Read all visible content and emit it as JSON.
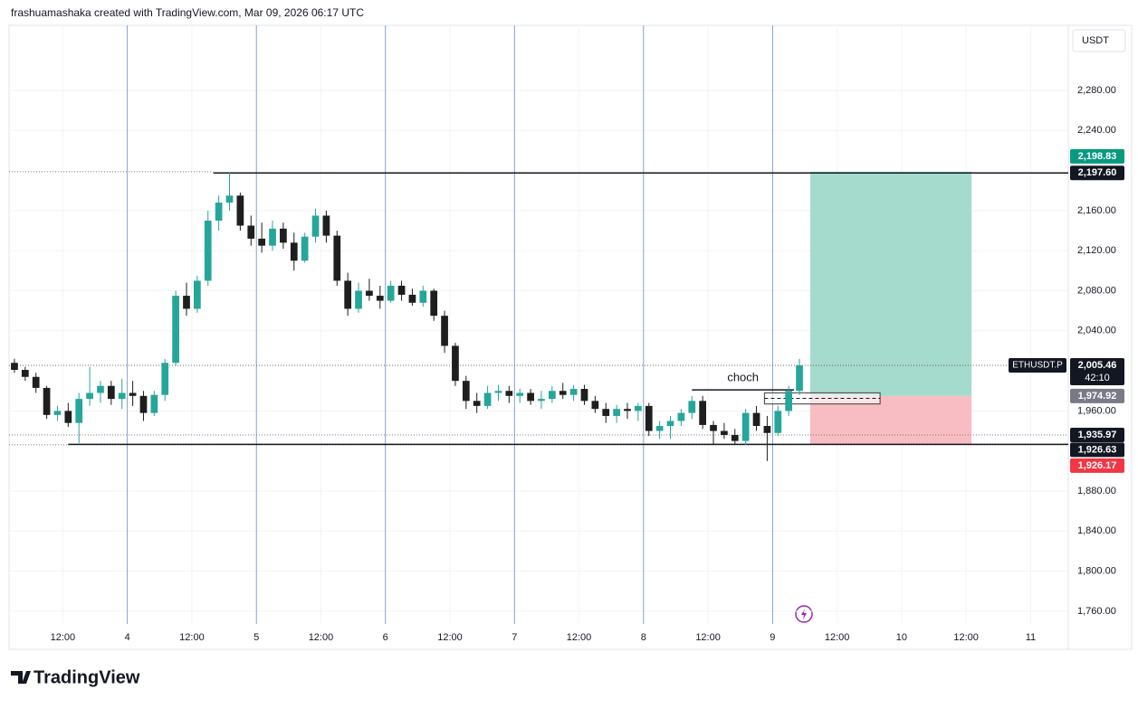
{
  "chart_data": {
    "type": "candlestick",
    "attribution": "frashuamashaka created with TradingView.com, Mar 09, 2026 06:17 UTC",
    "brand": "TradingView",
    "currency": "USDT",
    "symbol": "ETHUSDT.P",
    "countdown": "42:10",
    "up_color": "#26a69a",
    "down_color": "#1e1e1e",
    "xlim": [
      -22,
      175
    ],
    "ylim": [
      1722,
      2345
    ],
    "xticks": [
      {
        "value": -12,
        "label": "12:00"
      },
      {
        "value": 0,
        "label": "4"
      },
      {
        "value": 12,
        "label": "12:00"
      },
      {
        "value": 24,
        "label": "5"
      },
      {
        "value": 36,
        "label": "12:00"
      },
      {
        "value": 48,
        "label": "6"
      },
      {
        "value": 60,
        "label": "12:00"
      },
      {
        "value": 72,
        "label": "7"
      },
      {
        "value": 84,
        "label": "12:00"
      },
      {
        "value": 96,
        "label": "8"
      },
      {
        "value": 108,
        "label": "12:00"
      },
      {
        "value": 120,
        "label": "9"
      },
      {
        "value": 132,
        "label": "12:00"
      },
      {
        "value": 144,
        "label": "10"
      },
      {
        "value": 156,
        "label": "12:00"
      },
      {
        "value": 168,
        "label": "11"
      }
    ],
    "session_lines": [
      0,
      24,
      48,
      72,
      96,
      120
    ],
    "yticks": [
      {
        "value": 2280,
        "label": "2,280.00"
      },
      {
        "value": 2240,
        "label": "2,240.00"
      },
      {
        "value": 2160,
        "label": "2,160.00"
      },
      {
        "value": 2120,
        "label": "2,120.00"
      },
      {
        "value": 2080,
        "label": "2,080.00"
      },
      {
        "value": 2040,
        "label": "2,040.00"
      },
      {
        "value": 1960,
        "label": "1,960.00"
      },
      {
        "value": 1880,
        "label": "1,880.00"
      },
      {
        "value": 1840,
        "label": "1,840.00"
      },
      {
        "value": 1800,
        "label": "1,800.00"
      },
      {
        "value": 1760,
        "label": "1,760.00"
      }
    ],
    "x": [
      -21,
      -19,
      -17,
      -15,
      -13,
      -11,
      -9,
      -7,
      -5,
      -3,
      -1,
      1,
      3,
      5,
      7,
      9,
      11,
      13,
      15,
      17,
      19,
      21,
      23,
      25,
      27,
      29,
      31,
      33,
      35,
      37,
      39,
      41,
      43,
      45,
      47,
      49,
      51,
      53,
      55,
      57,
      59,
      61,
      63,
      65,
      67,
      69,
      71,
      73,
      75,
      77,
      79,
      81,
      83,
      85,
      87,
      89,
      91,
      93,
      95,
      97,
      99,
      101,
      103,
      105,
      107,
      109,
      111,
      113,
      115,
      117,
      119,
      121,
      123,
      125
    ],
    "ohlc": [
      [
        2008,
        2012,
        1998,
        2001
      ],
      [
        2001,
        2004,
        1990,
        1994
      ],
      [
        1994,
        1998,
        1978,
        1983
      ],
      [
        1983,
        1985,
        1952,
        1956
      ],
      [
        1956,
        1965,
        1950,
        1960
      ],
      [
        1960,
        1968,
        1944,
        1948
      ],
      [
        1948,
        1978,
        1928,
        1972
      ],
      [
        1972,
        2004,
        1965,
        1978
      ],
      [
        1978,
        1990,
        1968,
        1985
      ],
      [
        1985,
        1990,
        1966,
        1972
      ],
      [
        1972,
        1992,
        1962,
        1978
      ],
      [
        1978,
        1990,
        1965,
        1975
      ],
      [
        1975,
        1980,
        1950,
        1958
      ],
      [
        1958,
        1980,
        1955,
        1976
      ],
      [
        1976,
        2012,
        1970,
        2008
      ],
      [
        2008,
        2080,
        2005,
        2075
      ],
      [
        2075,
        2088,
        2055,
        2062
      ],
      [
        2062,
        2095,
        2058,
        2090
      ],
      [
        2090,
        2160,
        2085,
        2150
      ],
      [
        2150,
        2175,
        2140,
        2168
      ],
      [
        2168,
        2197.6,
        2160,
        2175
      ],
      [
        2175,
        2178,
        2140,
        2145
      ],
      [
        2145,
        2155,
        2125,
        2132
      ],
      [
        2132,
        2148,
        2118,
        2125
      ],
      [
        2125,
        2150,
        2120,
        2142
      ],
      [
        2142,
        2148,
        2122,
        2128
      ],
      [
        2128,
        2138,
        2100,
        2110
      ],
      [
        2110,
        2138,
        2108,
        2134
      ],
      [
        2134,
        2162,
        2128,
        2155
      ],
      [
        2155,
        2160,
        2128,
        2135
      ],
      [
        2135,
        2140,
        2085,
        2090
      ],
      [
        2090,
        2098,
        2055,
        2062
      ],
      [
        2062,
        2088,
        2058,
        2080
      ],
      [
        2080,
        2092,
        2070,
        2075
      ],
      [
        2075,
        2085,
        2062,
        2070
      ],
      [
        2070,
        2090,
        2068,
        2085
      ],
      [
        2085,
        2090,
        2070,
        2076
      ],
      [
        2076,
        2082,
        2065,
        2068
      ],
      [
        2068,
        2085,
        2064,
        2080
      ],
      [
        2080,
        2082,
        2050,
        2055
      ],
      [
        2055,
        2060,
        2018,
        2025
      ],
      [
        2025,
        2028,
        1985,
        1990
      ],
      [
        1990,
        1995,
        1962,
        1970
      ],
      [
        1970,
        1978,
        1958,
        1965
      ],
      [
        1965,
        1985,
        1962,
        1978
      ],
      [
        1978,
        1986,
        1970,
        1980
      ],
      [
        1980,
        1985,
        1968,
        1975
      ],
      [
        1975,
        1982,
        1968,
        1978
      ],
      [
        1978,
        1982,
        1966,
        1970
      ],
      [
        1970,
        1980,
        1962,
        1972
      ],
      [
        1972,
        1985,
        1968,
        1980
      ],
      [
        1980,
        1988,
        1972,
        1976
      ],
      [
        1976,
        1986,
        1970,
        1982
      ],
      [
        1982,
        1986,
        1966,
        1970
      ],
      [
        1970,
        1975,
        1958,
        1962
      ],
      [
        1962,
        1968,
        1948,
        1955
      ],
      [
        1955,
        1966,
        1948,
        1962
      ],
      [
        1962,
        1968,
        1952,
        1960
      ],
      [
        1960,
        1968,
        1950,
        1965
      ],
      [
        1965,
        1968,
        1935,
        1940
      ],
      [
        1940,
        1950,
        1932,
        1945
      ],
      [
        1945,
        1955,
        1932,
        1950
      ],
      [
        1950,
        1962,
        1945,
        1958
      ],
      [
        1958,
        1975,
        1952,
        1970
      ],
      [
        1970,
        1975,
        1942,
        1946
      ],
      [
        1946,
        1950,
        1926,
        1940
      ],
      [
        1940,
        1948,
        1932,
        1936
      ],
      [
        1936,
        1942,
        1926,
        1930
      ],
      [
        1930,
        1962,
        1926,
        1958
      ],
      [
        1958,
        1965,
        1940,
        1945
      ],
      [
        1945,
        1955,
        1910,
        1938
      ],
      [
        1938,
        1965,
        1935,
        1960
      ],
      [
        1960,
        1985,
        1955,
        1980
      ],
      [
        1980,
        2012,
        1976,
        2005.46
      ]
    ],
    "levels": [
      {
        "value": 2197.6,
        "label": "2,197.60",
        "from": 16
      },
      {
        "value": 1926.63,
        "label": "1,926.63",
        "from": -11
      }
    ],
    "dotted_lines": [
      {
        "value": 2198.83,
        "to": 16
      },
      {
        "value": 2005.46
      },
      {
        "value": 1935.97
      },
      {
        "value": 1926.17
      }
    ],
    "position": {
      "from": 127,
      "to": 157,
      "target": {
        "value": 2198.83,
        "label": "2,198.83"
      },
      "entry": {
        "value": 1974.92,
        "label": "1,974.92"
      },
      "stop": {
        "value": 1926.17,
        "label": "1,926.17"
      }
    },
    "last_price": {
      "value": 2005.46,
      "label": "2,005.46"
    },
    "extra_tags": [
      {
        "value": 1935.97,
        "label": "1,935.97"
      }
    ],
    "choch": {
      "label": "choch",
      "value": 1981,
      "from": 105,
      "to": 124
    },
    "zone": {
      "from": 118.5,
      "to": 140,
      "top": 1978,
      "bottom": 1967
    }
  }
}
